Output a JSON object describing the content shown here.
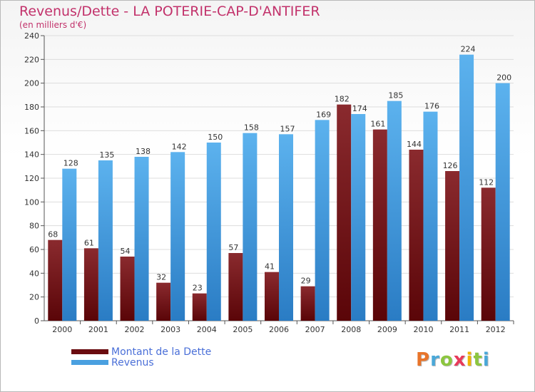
{
  "header": {
    "title": "Revenus/Dette - LA POTERIE-CAP-D'ANTIFER",
    "subtitle": "(en milliers d'€)"
  },
  "brand": {
    "letters": [
      "P",
      "r",
      "o",
      "x",
      "i",
      "t",
      "i"
    ],
    "colors": [
      "#e8742a",
      "#4aa8d8",
      "#8cc63f",
      "#e83a5a",
      "#f0b400",
      "#8cc63f",
      "#4aa8d8"
    ]
  },
  "chart_data": {
    "type": "bar",
    "categories": [
      "2000",
      "2001",
      "2002",
      "2003",
      "2004",
      "2005",
      "2006",
      "2007",
      "2008",
      "2009",
      "2010",
      "2011",
      "2012"
    ],
    "series": [
      {
        "name": "Montant de la Dette",
        "color": "#7a1416",
        "values": [
          68,
          61,
          54,
          32,
          23,
          57,
          41,
          29,
          182,
          161,
          144,
          126,
          112
        ]
      },
      {
        "name": "Revenus",
        "color": "#4aa0e0",
        "values": [
          128,
          135,
          138,
          142,
          150,
          158,
          157,
          169,
          174,
          185,
          176,
          224,
          200
        ]
      }
    ],
    "ylim": [
      0,
      240
    ],
    "ytick_step": 20,
    "grid": true,
    "legend_position": "bottom-left"
  }
}
